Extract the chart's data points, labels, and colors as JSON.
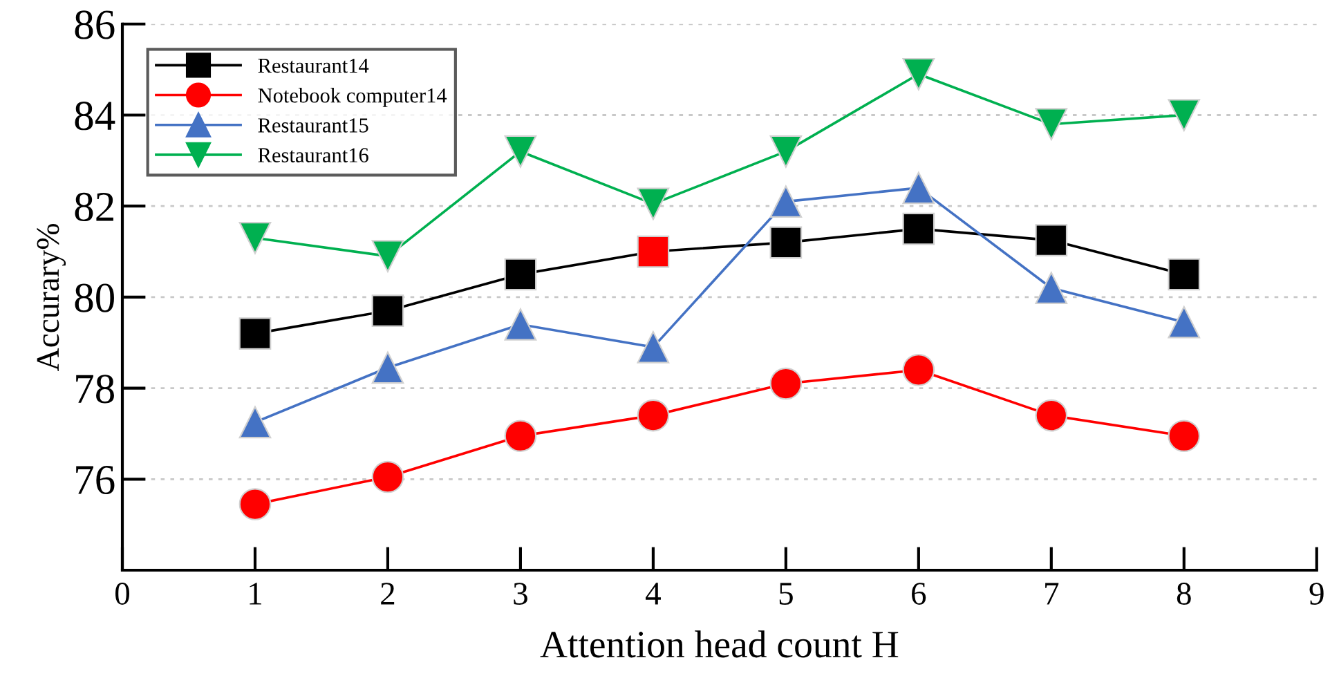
{
  "chart_data": {
    "type": "line",
    "xlabel": "Attention head count H",
    "ylabel": "Accurary%",
    "x": [
      1,
      2,
      3,
      4,
      5,
      6,
      7,
      8
    ],
    "series": [
      {
        "name": "Restaurant14",
        "color": "#000000",
        "marker": "square",
        "colors": [
          "#000000",
          "#000000",
          "#000000",
          "#ff0000",
          "#000000",
          "#000000",
          "#000000",
          "#000000"
        ],
        "values": [
          79.2,
          79.7,
          80.5,
          81.0,
          81.2,
          81.5,
          81.25,
          80.5
        ]
      },
      {
        "name": "Notebook computer14",
        "color": "#ff0000",
        "marker": "circle",
        "values": [
          75.45,
          76.05,
          76.95,
          77.4,
          78.1,
          78.4,
          77.4,
          76.95
        ]
      },
      {
        "name": "Restaurant15",
        "color": "#4472c4",
        "marker": "triangle",
        "values": [
          77.25,
          78.45,
          79.4,
          78.9,
          82.1,
          82.4,
          80.2,
          79.45
        ]
      },
      {
        "name": "Restaurant16",
        "color": "#00b050",
        "marker": "triangle_down",
        "values": [
          81.3,
          80.9,
          83.2,
          82.05,
          83.2,
          84.9,
          83.8,
          84.0
        ]
      }
    ],
    "xlim": [
      0,
      9
    ],
    "xticks": [
      0,
      1,
      2,
      3,
      4,
      5,
      6,
      7,
      8,
      9
    ],
    "ylim": [
      74,
      86
    ],
    "yticks": [
      76,
      78,
      80,
      82,
      84,
      86
    ],
    "grid": "y",
    "legend": "top left",
    "line_style": "solid"
  }
}
